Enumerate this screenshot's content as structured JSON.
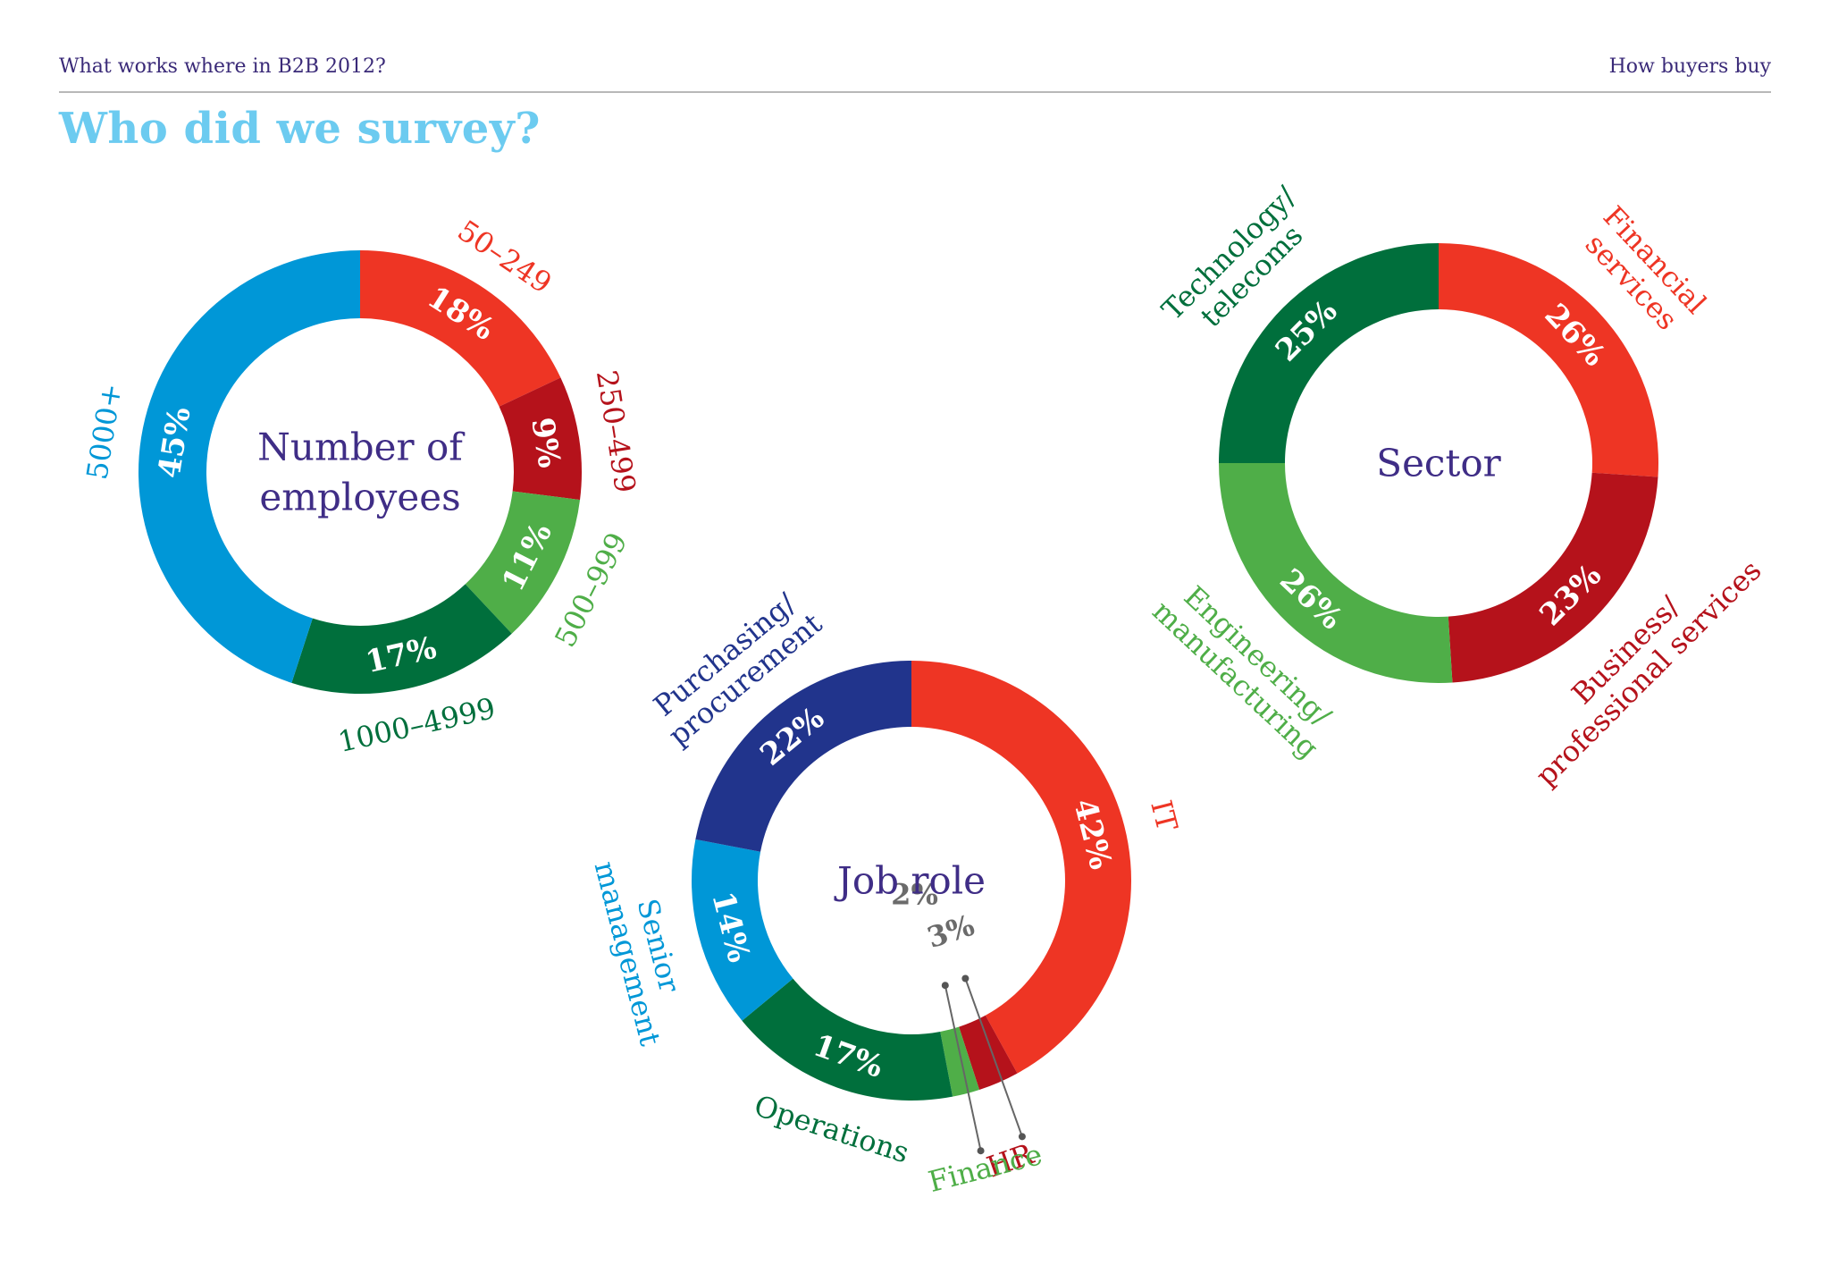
{
  "header": {
    "left": "What works where in B2B 2012?",
    "right": "How buyers buy"
  },
  "page_title": "Who did we survey?",
  "chart_data": [
    {
      "type": "pie",
      "title": "Number of employees",
      "title_lines": [
        "Number of",
        "employees"
      ],
      "start_angle_deg": 0,
      "slices": [
        {
          "label": "50–249",
          "label_lines": [
            "50–249"
          ],
          "value": 18,
          "pct_text": "18%",
          "color": "#ee3524"
        },
        {
          "label": "250–499",
          "label_lines": [
            "250–499"
          ],
          "value": 9,
          "pct_text": "9%",
          "color": "#b5121b"
        },
        {
          "label": "500–999",
          "label_lines": [
            "500–999"
          ],
          "value": 11,
          "pct_text": "11%",
          "color": "#4fae48"
        },
        {
          "label": "1000–4999",
          "label_lines": [
            "1000–4999"
          ],
          "value": 17,
          "pct_text": "17%",
          "color": "#006f3c"
        },
        {
          "label": "5000+",
          "label_lines": [
            "5000+"
          ],
          "value": 45,
          "pct_text": "45%",
          "color": "#0097d7"
        }
      ]
    },
    {
      "type": "pie",
      "title": "Sector",
      "title_lines": [
        "Sector"
      ],
      "start_angle_deg": 0,
      "slices": [
        {
          "label": "Financial services",
          "label_lines": [
            "Financial",
            "services"
          ],
          "value": 26,
          "pct_text": "26%",
          "color": "#ee3524"
        },
        {
          "label": "Business/ professional services",
          "label_lines": [
            "Business/",
            "professional services"
          ],
          "value": 23,
          "pct_text": "23%",
          "color": "#b5121b"
        },
        {
          "label": "Engineering/ manufacturing",
          "label_lines": [
            "Engineering/",
            "manufacturing"
          ],
          "value": 26,
          "pct_text": "26%",
          "color": "#4fae48"
        },
        {
          "label": "Technology/ telecoms",
          "label_lines": [
            "Technology/",
            "telecoms"
          ],
          "value": 25,
          "pct_text": "25%",
          "color": "#006f3c"
        }
      ]
    },
    {
      "type": "pie",
      "title": "Job role",
      "title_lines": [
        "Job role"
      ],
      "start_angle_deg": 0,
      "slices": [
        {
          "label": "IT",
          "label_lines": [
            "IT"
          ],
          "value": 42,
          "pct_text": "42%",
          "color": "#ee3524"
        },
        {
          "label": "HR",
          "label_lines": [
            "HR"
          ],
          "value": 3,
          "pct_text": "3%",
          "color": "#b5121b"
        },
        {
          "label": "Finance",
          "label_lines": [
            "Finance"
          ],
          "value": 2,
          "pct_text": "2%",
          "color": "#4fae48"
        },
        {
          "label": "Operations",
          "label_lines": [
            "Operations"
          ],
          "value": 17,
          "pct_text": "17%",
          "color": "#006f3c"
        },
        {
          "label": "Senior management",
          "label_lines": [
            "Senior",
            "management"
          ],
          "value": 14,
          "pct_text": "14%",
          "color": "#0097d7"
        },
        {
          "label": "Purchasing/ procurement",
          "label_lines": [
            "Purchasing/",
            "procurement"
          ],
          "value": 22,
          "pct_text": "22%",
          "color": "#21348c"
        }
      ]
    }
  ]
}
